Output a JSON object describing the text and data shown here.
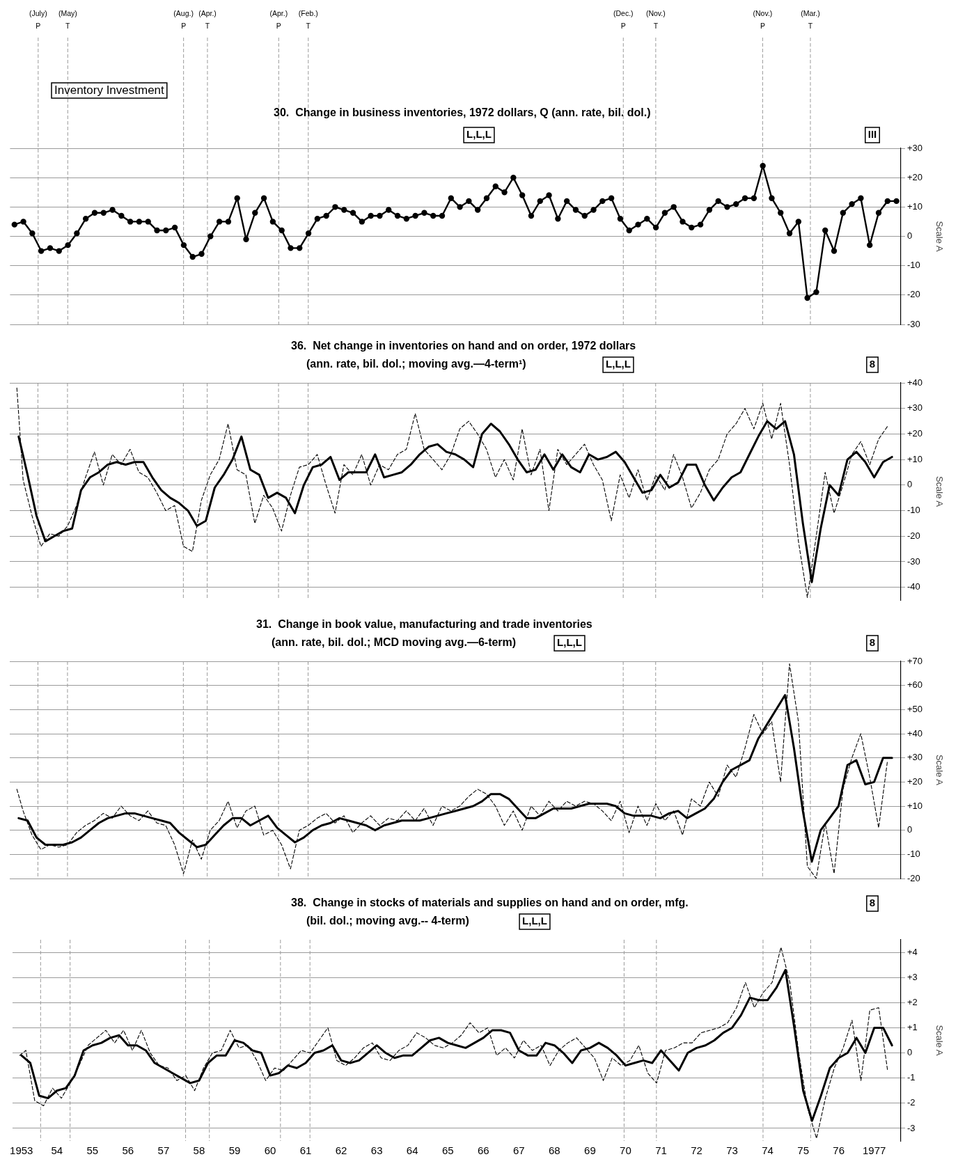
{
  "chart_data": [
    {
      "type": "line",
      "title": "30.  Change in business inventories, 1972 dollars, Q (ann. rate, bil. dol.)",
      "ylabel": "Scale A",
      "x": [
        1952.875,
        1953.125,
        1953.375,
        1953.625,
        1953.875,
        1954.125,
        1954.375,
        1954.625,
        1954.875,
        1955.125,
        1955.375,
        1955.625,
        1955.875,
        1956.125,
        1956.375,
        1956.625,
        1956.875,
        1957.125,
        1957.375,
        1957.625,
        1957.875,
        1958.125,
        1958.375,
        1958.625,
        1958.875,
        1959.125,
        1959.375,
        1959.625,
        1959.875,
        1960.125,
        1960.375,
        1960.625,
        1960.875,
        1961.125,
        1961.375,
        1961.625,
        1961.875,
        1962.125,
        1962.375,
        1962.625,
        1962.875,
        1963.125,
        1963.375,
        1963.625,
        1963.875,
        1964.125,
        1964.375,
        1964.625,
        1964.875,
        1965.125,
        1965.375,
        1965.625,
        1965.875,
        1966.125,
        1966.375,
        1966.625,
        1966.875,
        1967.125,
        1967.375,
        1967.625,
        1967.875,
        1968.125,
        1968.375,
        1968.625,
        1968.875,
        1969.125,
        1969.375,
        1969.625,
        1969.875,
        1970.125,
        1970.375,
        1970.625,
        1970.875,
        1971.125,
        1971.375,
        1971.625,
        1971.875,
        1972.125,
        1972.375,
        1972.625,
        1972.875,
        1973.125,
        1973.375,
        1973.625,
        1973.875,
        1974.125,
        1974.375,
        1974.625,
        1974.875,
        1975.125,
        1975.375,
        1975.625,
        1975.875,
        1976.125,
        1976.375,
        1976.625,
        1976.875,
        1977.125,
        1977.375,
        1977.625
      ],
      "series": [
        {
          "color": "#000000",
          "marker": "circle",
          "line_style": "solid",
          "values": [
            4,
            5,
            1,
            -5,
            -4,
            -5,
            -3,
            1,
            6,
            8,
            8,
            9,
            7,
            5,
            5,
            5,
            2,
            2,
            3,
            -3,
            -7,
            -6,
            0,
            5,
            5,
            13,
            -1,
            8,
            13,
            5,
            2,
            -4,
            -4,
            1,
            6,
            7,
            10,
            9,
            8,
            5,
            7,
            7,
            9,
            7,
            6,
            7,
            8,
            7,
            7,
            13,
            10,
            12,
            9,
            13,
            17,
            15,
            20,
            14,
            7,
            12,
            14,
            6,
            12,
            9,
            7,
            9,
            12,
            13,
            6,
            2,
            4,
            6,
            3,
            8,
            10,
            5,
            3,
            4,
            9,
            12,
            10,
            11,
            13,
            13,
            24,
            13,
            8,
            1,
            5,
            -21,
            -19,
            2,
            -5,
            8,
            11,
            13,
            -3,
            8,
            12,
            12
          ]
        }
      ],
      "xlim": [
        1952.75,
        1977.75
      ],
      "ylim": [
        -30,
        30
      ],
      "yticks": [
        {
          "value": 30,
          "label": "+30"
        },
        {
          "value": 20,
          "label": "+20"
        },
        {
          "value": 10,
          "label": "+10"
        },
        0,
        -10,
        -20,
        -30
      ],
      "grid": "y",
      "tick_labels": "y",
      "annotations": [
        "Inventory Investment",
        "L,L,L",
        "III"
      ],
      "ref_lines": [
        {
          "axis": "x",
          "value": 1953.54,
          "label": "(July)\nP",
          "color": "#9a9a9a",
          "line_style": "dashed"
        },
        {
          "axis": "x",
          "value": 1954.37,
          "label": "(May)\nT",
          "color": "#9a9a9a",
          "line_style": "dashed"
        },
        {
          "axis": "x",
          "value": 1957.62,
          "label": "(Aug.)\nP",
          "color": "#9a9a9a",
          "line_style": "dashed"
        },
        {
          "axis": "x",
          "value": 1958.29,
          "label": "(Apr.)\nT",
          "color": "#9a9a9a",
          "line_style": "dashed"
        },
        {
          "axis": "x",
          "value": 1960.29,
          "label": "(Apr.)\nP",
          "color": "#9a9a9a",
          "line_style": "dashed"
        },
        {
          "axis": "x",
          "value": 1961.12,
          "label": "(Feb.)\nT",
          "color": "#9a9a9a",
          "line_style": "dashed"
        },
        {
          "axis": "x",
          "value": 1969.96,
          "label": "(Dec.)\nP",
          "color": "#9a9a9a",
          "line_style": "dashed"
        },
        {
          "axis": "x",
          "value": 1970.87,
          "label": "(Nov.)\nT",
          "color": "#9a9a9a",
          "line_style": "dashed"
        },
        {
          "axis": "x",
          "value": 1973.87,
          "label": "(Nov.)\nP",
          "color": "#9a9a9a",
          "line_style": "dashed"
        },
        {
          "axis": "x",
          "value": 1975.21,
          "label": "(Mar.)\nT",
          "color": "#9a9a9a",
          "line_style": "dashed"
        }
      ]
    },
    {
      "type": "line",
      "title": "36.  Net change in inventories on hand and on order, 1972 dollars",
      "subtitle": "(ann. rate, bil. dol.; moving avg.—4-term¹)",
      "ylabel": "Scale A",
      "x": [
        1953,
        1953.25,
        1953.5,
        1953.75,
        1954,
        1954.25,
        1954.5,
        1954.75,
        1955,
        1955.25,
        1955.5,
        1955.75,
        1956,
        1956.25,
        1956.5,
        1956.75,
        1957,
        1957.25,
        1957.5,
        1957.75,
        1958,
        1958.25,
        1958.5,
        1958.75,
        1959,
        1959.25,
        1959.5,
        1959.75,
        1960,
        1960.25,
        1960.5,
        1960.75,
        1961,
        1961.25,
        1961.5,
        1961.75,
        1962,
        1962.25,
        1962.5,
        1962.75,
        1963,
        1963.25,
        1963.5,
        1963.75,
        1964,
        1964.25,
        1964.5,
        1964.75,
        1965,
        1965.25,
        1965.5,
        1965.75,
        1966,
        1966.25,
        1966.5,
        1966.75,
        1967,
        1967.25,
        1967.5,
        1967.75,
        1968,
        1968.25,
        1968.5,
        1968.75,
        1969,
        1969.25,
        1969.5,
        1969.75,
        1970,
        1970.25,
        1970.5,
        1970.75,
        1971,
        1971.25,
        1971.5,
        1971.75,
        1972,
        1972.25,
        1972.5,
        1972.75,
        1973,
        1973.25,
        1973.5,
        1973.75,
        1974,
        1974.25,
        1974.5,
        1974.75,
        1975,
        1975.25,
        1975.5,
        1975.75,
        1976,
        1976.25,
        1976.5,
        1976.75,
        1977,
        1977.25,
        1977.5
      ],
      "series": [
        {
          "color": "#000000",
          "line_style": "dashed",
          "marker": "none",
          "x": [
            1952.95,
            1953.125,
            1953.375,
            1953.625,
            1953.875,
            1954.125,
            1954.375,
            1954.625,
            1954.875,
            1955.125,
            1955.375,
            1955.625,
            1955.875,
            1956.125,
            1956.375,
            1956.625,
            1956.875,
            1957.125,
            1957.375,
            1957.625,
            1957.875,
            1958.125,
            1958.375,
            1958.625,
            1958.875,
            1959.125,
            1959.375,
            1959.625,
            1959.875,
            1960.125,
            1960.375,
            1960.625,
            1960.875,
            1961.125,
            1961.375,
            1961.625,
            1961.875,
            1962.125,
            1962.375,
            1962.625,
            1962.875,
            1963.125,
            1963.375,
            1963.625,
            1963.875,
            1964.125,
            1964.375,
            1964.625,
            1964.875,
            1965.125,
            1965.375,
            1965.625,
            1965.875,
            1966.125,
            1966.375,
            1966.625,
            1966.875,
            1967.125,
            1967.375,
            1967.625,
            1967.875,
            1968.125,
            1968.375,
            1968.625,
            1968.875,
            1969.125,
            1969.375,
            1969.625,
            1969.875,
            1970.125,
            1970.375,
            1970.625,
            1970.875,
            1971.125,
            1971.375,
            1971.625,
            1971.875,
            1972.125,
            1972.375,
            1972.625,
            1972.875,
            1973.125,
            1973.375,
            1973.625,
            1973.875,
            1974.125,
            1974.375,
            1974.625,
            1974.875,
            1975.125,
            1975.375,
            1975.625,
            1975.875,
            1976.125,
            1976.375,
            1976.625,
            1976.875,
            1977.125,
            1977.375
          ],
          "values": [
            38,
            2,
            -12,
            -24,
            -19,
            -20,
            -16,
            -8,
            3,
            13,
            0,
            12,
            8,
            14,
            5,
            3,
            -3,
            -10,
            -8,
            -24,
            -26,
            -6,
            4,
            10,
            24,
            6,
            4,
            -15,
            -4,
            -9,
            -18,
            -4,
            7,
            8,
            12,
            0,
            -11,
            8,
            4,
            12,
            0,
            8,
            6,
            12,
            14,
            28,
            14,
            10,
            6,
            12,
            22,
            25,
            20,
            14,
            3,
            10,
            2,
            22,
            4,
            14,
            -10,
            14,
            8,
            12,
            16,
            8,
            2,
            -14,
            4,
            -5,
            6,
            -6,
            4,
            -2,
            12,
            3,
            -9,
            -3,
            6,
            10,
            20,
            24,
            30,
            22,
            32,
            18,
            32,
            8,
            -22,
            -44,
            -20,
            5,
            -11,
            0,
            12,
            17,
            8,
            18,
            23
          ]
        },
        {
          "color": "#000000",
          "line_style": "solid",
          "marker": "none",
          "values": [
            19,
            4,
            -12,
            -22,
            -20,
            -18,
            -17,
            -2,
            3,
            5,
            8,
            9,
            8,
            9,
            9,
            3,
            -2,
            -5,
            -7,
            -10,
            -16,
            -14,
            -1,
            4,
            10,
            19,
            6,
            4,
            -5,
            -3,
            -5,
            -11,
            0,
            7,
            8,
            11,
            2,
            5,
            5,
            5,
            12,
            3,
            4,
            5,
            8,
            12,
            15,
            16,
            13,
            12,
            10,
            7,
            20,
            24,
            21,
            16,
            10,
            5,
            6,
            12,
            6,
            12,
            7,
            5,
            12,
            10,
            11,
            13,
            9,
            3,
            -3,
            -2,
            4,
            -1,
            1,
            8,
            8,
            0,
            -6,
            -1,
            3,
            5,
            12,
            19,
            25,
            22,
            25,
            12,
            -15,
            -38,
            -17,
            0,
            -4,
            10,
            13,
            9,
            3,
            9,
            11
          ]
        }
      ],
      "xlim": [
        1952.75,
        1977.75
      ],
      "ylim": [
        -45,
        40
      ],
      "yticks": [
        {
          "value": 40,
          "label": "+40"
        },
        {
          "value": 30,
          "label": "+30"
        },
        {
          "value": 20,
          "label": "+20"
        },
        {
          "value": 10,
          "label": "+10"
        },
        0,
        -10,
        -20,
        -30,
        -40
      ],
      "grid": "y",
      "tick_labels": "y",
      "annotations": [
        "L,L,L",
        "8"
      ],
      "ref_lines": [
        {
          "axis": "x",
          "value": 1953.54,
          "color": "#9a9a9a",
          "line_style": "dashed"
        },
        {
          "axis": "x",
          "value": 1954.37,
          "color": "#9a9a9a",
          "line_style": "dashed"
        },
        {
          "axis": "x",
          "value": 1957.62,
          "color": "#9a9a9a",
          "line_style": "dashed"
        },
        {
          "axis": "x",
          "value": 1958.29,
          "color": "#9a9a9a",
          "line_style": "dashed"
        },
        {
          "axis": "x",
          "value": 1960.29,
          "color": "#9a9a9a",
          "line_style": "dashed"
        },
        {
          "axis": "x",
          "value": 1961.12,
          "color": "#9a9a9a",
          "line_style": "dashed"
        },
        {
          "axis": "x",
          "value": 1969.96,
          "color": "#9a9a9a",
          "line_style": "dashed"
        },
        {
          "axis": "x",
          "value": 1970.87,
          "color": "#9a9a9a",
          "line_style": "dashed"
        },
        {
          "axis": "x",
          "value": 1973.87,
          "color": "#9a9a9a",
          "line_style": "dashed"
        },
        {
          "axis": "x",
          "value": 1975.21,
          "color": "#9a9a9a",
          "line_style": "dashed"
        }
      ]
    },
    {
      "type": "line",
      "title": "31.  Change in book value, manufacturing and trade inventories",
      "subtitle": "(ann. rate, bil. dol.; MCD moving avg.—6-term)",
      "ylabel": "Scale A",
      "x": [
        1953,
        1953.25,
        1953.5,
        1953.75,
        1954,
        1954.25,
        1954.5,
        1954.75,
        1955,
        1955.25,
        1955.5,
        1955.75,
        1956,
        1956.25,
        1956.5,
        1956.75,
        1957,
        1957.25,
        1957.5,
        1957.75,
        1958,
        1958.25,
        1958.5,
        1958.75,
        1959,
        1959.25,
        1959.5,
        1959.75,
        1960,
        1960.25,
        1960.5,
        1960.75,
        1961,
        1961.25,
        1961.5,
        1961.75,
        1962,
        1962.25,
        1962.5,
        1962.75,
        1963,
        1963.25,
        1963.5,
        1963.75,
        1964,
        1964.25,
        1964.5,
        1964.75,
        1965,
        1965.25,
        1965.5,
        1965.75,
        1966,
        1966.25,
        1966.5,
        1966.75,
        1967,
        1967.25,
        1967.5,
        1967.75,
        1968,
        1968.25,
        1968.5,
        1968.75,
        1969,
        1969.25,
        1969.5,
        1969.75,
        1970,
        1970.25,
        1970.5,
        1970.75,
        1971,
        1971.25,
        1971.5,
        1971.75,
        1972,
        1972.25,
        1972.5,
        1972.75,
        1973,
        1973.25,
        1973.5,
        1973.75,
        1974,
        1974.25,
        1974.5,
        1974.75,
        1975,
        1975.25,
        1975.5,
        1975.75,
        1976,
        1976.25,
        1976.5,
        1976.75,
        1977,
        1977.25,
        1977.5
      ],
      "series": [
        {
          "color": "#000000",
          "line_style": "dashed",
          "marker": "none",
          "x": [
            1952.95,
            1953.125,
            1953.375,
            1953.625,
            1953.875,
            1954.125,
            1954.375,
            1954.625,
            1954.875,
            1955.125,
            1955.375,
            1955.625,
            1955.875,
            1956.125,
            1956.375,
            1956.625,
            1956.875,
            1957.125,
            1957.375,
            1957.625,
            1957.875,
            1958.125,
            1958.375,
            1958.625,
            1958.875,
            1959.125,
            1959.375,
            1959.625,
            1959.875,
            1960.125,
            1960.375,
            1960.625,
            1960.875,
            1961.125,
            1961.375,
            1961.625,
            1961.875,
            1962.125,
            1962.375,
            1962.625,
            1962.875,
            1963.125,
            1963.375,
            1963.625,
            1963.875,
            1964.125,
            1964.375,
            1964.625,
            1964.875,
            1965.125,
            1965.375,
            1965.625,
            1965.875,
            1966.125,
            1966.375,
            1966.625,
            1966.875,
            1967.125,
            1967.375,
            1967.625,
            1967.875,
            1968.125,
            1968.375,
            1968.625,
            1968.875,
            1969.125,
            1969.375,
            1969.625,
            1969.875,
            1970.125,
            1970.375,
            1970.625,
            1970.875,
            1971.125,
            1971.375,
            1971.625,
            1971.875,
            1972.125,
            1972.375,
            1972.625,
            1972.875,
            1973.125,
            1973.375,
            1973.625,
            1973.875,
            1974.125,
            1974.375,
            1974.625,
            1974.875,
            1975.125,
            1975.375,
            1975.625,
            1975.875,
            1976.125,
            1976.375,
            1976.625,
            1976.875,
            1977.125,
            1977.375
          ],
          "values": [
            17,
            8,
            -2,
            -8,
            -6,
            -7,
            -6,
            -1,
            2,
            4,
            7,
            5,
            10,
            6,
            4,
            8,
            3,
            2,
            -6,
            -18,
            -4,
            -12,
            0,
            4,
            12,
            1,
            8,
            10,
            -2,
            0,
            -6,
            -16,
            0,
            2,
            5,
            7,
            3,
            6,
            -1,
            3,
            6,
            2,
            5,
            4,
            8,
            4,
            9,
            2,
            10,
            8,
            10,
            14,
            17,
            15,
            10,
            2,
            8,
            0,
            10,
            6,
            12,
            8,
            12,
            10,
            12,
            11,
            8,
            4,
            12,
            -1,
            10,
            2,
            11,
            4,
            8,
            -2,
            13,
            10,
            20,
            14,
            27,
            22,
            34,
            48,
            40,
            45,
            20,
            69,
            45,
            -15,
            -20,
            3,
            -18,
            17,
            30,
            40,
            22,
            1,
            29
          ]
        },
        {
          "color": "#000000",
          "line_style": "solid",
          "marker": "none",
          "values": [
            5,
            4,
            -3,
            -6,
            -6,
            -6,
            -5,
            -3,
            0,
            3,
            5,
            6,
            7,
            7,
            6,
            5,
            4,
            3,
            -1,
            -4,
            -7,
            -6,
            -2,
            2,
            5,
            5,
            2,
            4,
            6,
            1,
            -2,
            -5,
            -3,
            0,
            2,
            3,
            5,
            4,
            3,
            2,
            0,
            2,
            3,
            4,
            4,
            4,
            5,
            6,
            7,
            8,
            9,
            10,
            12,
            15,
            15,
            13,
            9,
            5,
            5,
            7,
            9,
            9,
            9,
            10,
            11,
            11,
            11,
            10,
            7,
            6,
            6,
            6,
            5,
            7,
            8,
            5,
            7,
            9,
            13,
            20,
            25,
            27,
            29,
            38,
            44,
            50,
            56,
            34,
            8,
            -13,
            0,
            5,
            10,
            27,
            29,
            19,
            20,
            30,
            30
          ]
        }
      ],
      "xlim": [
        1952.75,
        1977.75
      ],
      "ylim": [
        -20,
        70
      ],
      "yticks": [
        {
          "value": 70,
          "label": "+70"
        },
        {
          "value": 60,
          "label": "+60"
        },
        {
          "value": 50,
          "label": "+50"
        },
        {
          "value": 40,
          "label": "+40"
        },
        {
          "value": 30,
          "label": "+30"
        },
        {
          "value": 20,
          "label": "+20"
        },
        {
          "value": 10,
          "label": "+10"
        },
        0,
        -10,
        -20
      ],
      "grid": "y",
      "tick_labels": "y",
      "annotations": [
        "L,L,L",
        "8"
      ],
      "ref_lines": [
        {
          "axis": "x",
          "value": 1953.54,
          "color": "#9a9a9a",
          "line_style": "dashed"
        },
        {
          "axis": "x",
          "value": 1954.37,
          "color": "#9a9a9a",
          "line_style": "dashed"
        },
        {
          "axis": "x",
          "value": 1957.62,
          "color": "#9a9a9a",
          "line_style": "dashed"
        },
        {
          "axis": "x",
          "value": 1958.29,
          "color": "#9a9a9a",
          "line_style": "dashed"
        },
        {
          "axis": "x",
          "value": 1960.29,
          "color": "#9a9a9a",
          "line_style": "dashed"
        },
        {
          "axis": "x",
          "value": 1961.12,
          "color": "#9a9a9a",
          "line_style": "dashed"
        },
        {
          "axis": "x",
          "value": 1969.96,
          "color": "#9a9a9a",
          "line_style": "dashed"
        },
        {
          "axis": "x",
          "value": 1970.87,
          "color": "#9a9a9a",
          "line_style": "dashed"
        },
        {
          "axis": "x",
          "value": 1973.87,
          "color": "#9a9a9a",
          "line_style": "dashed"
        },
        {
          "axis": "x",
          "value": 1975.21,
          "color": "#9a9a9a",
          "line_style": "dashed"
        }
      ]
    },
    {
      "type": "line",
      "title": "38.  Change in stocks of materials and supplies on hand and on order, mfg.",
      "subtitle": "(bil. dol.; moving avg.-- 4-term)",
      "ylabel": "Scale A",
      "x": [
        1953,
        1953.25,
        1953.5,
        1953.75,
        1954,
        1954.25,
        1954.5,
        1954.75,
        1955,
        1955.25,
        1955.5,
        1955.75,
        1956,
        1956.25,
        1956.5,
        1956.75,
        1957,
        1957.25,
        1957.5,
        1957.75,
        1958,
        1958.25,
        1958.5,
        1958.75,
        1959,
        1959.25,
        1959.5,
        1959.75,
        1960,
        1960.25,
        1960.5,
        1960.75,
        1961,
        1961.25,
        1961.5,
        1961.75,
        1962,
        1962.25,
        1962.5,
        1962.75,
        1963,
        1963.25,
        1963.5,
        1963.75,
        1964,
        1964.25,
        1964.5,
        1964.75,
        1965,
        1965.25,
        1965.5,
        1965.75,
        1966,
        1966.25,
        1966.5,
        1966.75,
        1967,
        1967.25,
        1967.5,
        1967.75,
        1968,
        1968.25,
        1968.5,
        1968.75,
        1969,
        1969.25,
        1969.5,
        1969.75,
        1970,
        1970.25,
        1970.5,
        1970.75,
        1971,
        1971.25,
        1971.5,
        1971.75,
        1972,
        1972.25,
        1972.5,
        1972.75,
        1973,
        1973.25,
        1973.5,
        1973.75,
        1974,
        1974.25,
        1974.5,
        1974.75,
        1975,
        1975.25,
        1975.5,
        1975.75,
        1976,
        1976.25,
        1976.5,
        1976.75,
        1977,
        1977.25,
        1977.5
      ],
      "series": [
        {
          "color": "#000000",
          "line_style": "dashed",
          "marker": "none",
          "x": [
            1952.95,
            1953.125,
            1953.375,
            1953.625,
            1953.875,
            1954.125,
            1954.375,
            1954.625,
            1954.875,
            1955.125,
            1955.375,
            1955.625,
            1955.875,
            1956.125,
            1956.375,
            1956.625,
            1956.875,
            1957.125,
            1957.375,
            1957.625,
            1957.875,
            1958.125,
            1958.375,
            1958.625,
            1958.875,
            1959.125,
            1959.375,
            1959.625,
            1959.875,
            1960.125,
            1960.375,
            1960.625,
            1960.875,
            1961.125,
            1961.375,
            1961.625,
            1961.875,
            1962.125,
            1962.375,
            1962.625,
            1962.875,
            1963.125,
            1963.375,
            1963.625,
            1963.875,
            1964.125,
            1964.375,
            1964.625,
            1964.875,
            1965.125,
            1965.375,
            1965.625,
            1965.875,
            1966.125,
            1966.375,
            1966.625,
            1966.875,
            1967.125,
            1967.375,
            1967.625,
            1967.875,
            1968.125,
            1968.375,
            1968.625,
            1968.875,
            1969.125,
            1969.375,
            1969.625,
            1969.875,
            1970.125,
            1970.375,
            1970.625,
            1970.875,
            1971.125,
            1971.375,
            1971.625,
            1971.875,
            1972.125,
            1972.375,
            1972.625,
            1972.875,
            1973.125,
            1973.375,
            1973.625,
            1973.875,
            1974.125,
            1974.375,
            1974.625,
            1974.875,
            1975.125,
            1975.375,
            1975.625,
            1975.875,
            1976.125,
            1976.375,
            1976.625,
            1976.875,
            1977.125,
            1977.375
          ],
          "values": [
            -0.1,
            0.1,
            -1.9,
            -2.1,
            -1.4,
            -1.8,
            -1.2,
            -0.5,
            0.3,
            0.6,
            0.9,
            0.4,
            0.9,
            0.1,
            0.9,
            0,
            -0.5,
            -0.6,
            -1.1,
            -0.9,
            -1.5,
            -0.6,
            0,
            0.1,
            0.9,
            0.2,
            0.3,
            -0.3,
            -1.1,
            -0.6,
            -0.7,
            -0.3,
            0.1,
            0,
            0.5,
            1,
            -0.3,
            -0.5,
            -0.2,
            0.2,
            0.4,
            -0.2,
            -0.3,
            0.1,
            0.3,
            0.8,
            0.6,
            0.3,
            0.2,
            0.4,
            0.7,
            1.2,
            0.8,
            1,
            -0.1,
            0.2,
            -0.2,
            0.5,
            0.1,
            0.3,
            -0.5,
            0.1,
            0.4,
            0.6,
            0.2,
            -0.2,
            -1.1,
            -0.2,
            -0.5,
            -0.3,
            0.3,
            -0.8,
            -1.2,
            0.1,
            0.2,
            0.4,
            0.4,
            0.8,
            0.9,
            1,
            1.2,
            1.8,
            2.8,
            1.8,
            2.4,
            2.8,
            4.2,
            2.8,
            0,
            -2.2,
            -3.4,
            -1.8,
            -0.6,
            0.2,
            1.3,
            -1.1,
            1.7,
            1.8,
            -0.7
          ]
        },
        {
          "color": "#000000",
          "line_style": "solid",
          "marker": "none",
          "values": [
            -0.1,
            -0.4,
            -1.7,
            -1.8,
            -1.5,
            -1.4,
            -0.9,
            0.1,
            0.3,
            0.4,
            0.6,
            0.7,
            0.3,
            0.3,
            0.1,
            -0.4,
            -0.6,
            -0.8,
            -1,
            -1.2,
            -1.1,
            -0.4,
            -0.1,
            -0.1,
            0.5,
            0.4,
            0.1,
            0,
            -0.9,
            -0.8,
            -0.5,
            -0.6,
            -0.4,
            0,
            0.1,
            0.3,
            -0.3,
            -0.4,
            -0.3,
            0,
            0.3,
            0,
            -0.2,
            -0.1,
            -0.1,
            0.2,
            0.5,
            0.6,
            0.4,
            0.3,
            0.2,
            0.4,
            0.6,
            0.9,
            0.9,
            0.8,
            0.1,
            -0.1,
            -0.1,
            0.4,
            0.3,
            0,
            -0.4,
            0.1,
            0.2,
            0.4,
            0.2,
            -0.1,
            -0.5,
            -0.4,
            -0.3,
            -0.4,
            0.1,
            -0.3,
            -0.7,
            0,
            0.2,
            0.3,
            0.5,
            0.8,
            1,
            1.5,
            2.2,
            2.1,
            2.1,
            2.6,
            3.3,
            1,
            -1.5,
            -2.7,
            -1.7,
            -0.6,
            -0.2,
            0,
            0.6,
            0,
            1,
            1,
            0.3
          ]
        }
      ],
      "xlim": [
        1952.75,
        1977.75
      ],
      "ylim": [
        -3.5,
        4.5
      ],
      "xticks": [
        1953,
        {
          "value": 1954,
          "label": "54"
        },
        {
          "value": 1955,
          "label": "55"
        },
        {
          "value": 1956,
          "label": "56"
        },
        {
          "value": 1957,
          "label": "57"
        },
        {
          "value": 1958,
          "label": "58"
        },
        {
          "value": 1959,
          "label": "59"
        },
        {
          "value": 1960,
          "label": "60"
        },
        {
          "value": 1961,
          "label": "61"
        },
        {
          "value": 1962,
          "label": "62"
        },
        {
          "value": 1963,
          "label": "63"
        },
        {
          "value": 1964,
          "label": "64"
        },
        {
          "value": 1965,
          "label": "65"
        },
        {
          "value": 1966,
          "label": "66"
        },
        {
          "value": 1967,
          "label": "67"
        },
        {
          "value": 1968,
          "label": "68"
        },
        {
          "value": 1969,
          "label": "69"
        },
        {
          "value": 1970,
          "label": "70"
        },
        {
          "value": 1971,
          "label": "71"
        },
        {
          "value": 1972,
          "label": "72"
        },
        {
          "value": 1973,
          "label": "73"
        },
        {
          "value": 1974,
          "label": "74"
        },
        {
          "value": 1975,
          "label": "75"
        },
        {
          "value": 1976,
          "label": "76"
        },
        1977
      ],
      "yticks": [
        {
          "value": 4,
          "label": "+4"
        },
        {
          "value": 3,
          "label": "+3"
        },
        {
          "value": 2,
          "label": "+2"
        },
        {
          "value": 1,
          "label": "+1"
        },
        0,
        -1,
        -2,
        -3
      ],
      "grid": "y",
      "annotations": [
        "L,L,L",
        "8"
      ],
      "ref_lines": [
        {
          "axis": "x",
          "value": 1953.54,
          "color": "#9a9a9a",
          "line_style": "dashed"
        },
        {
          "axis": "x",
          "value": 1954.37,
          "color": "#9a9a9a",
          "line_style": "dashed"
        },
        {
          "axis": "x",
          "value": 1957.62,
          "color": "#9a9a9a",
          "line_style": "dashed"
        },
        {
          "axis": "x",
          "value": 1958.29,
          "color": "#9a9a9a",
          "line_style": "dashed"
        },
        {
          "axis": "x",
          "value": 1960.29,
          "color": "#9a9a9a",
          "line_style": "dashed"
        },
        {
          "axis": "x",
          "value": 1961.12,
          "color": "#9a9a9a",
          "line_style": "dashed"
        },
        {
          "axis": "x",
          "value": 1969.96,
          "color": "#9a9a9a",
          "line_style": "dashed"
        },
        {
          "axis": "x",
          "value": 1970.87,
          "color": "#9a9a9a",
          "line_style": "dashed"
        },
        {
          "axis": "x",
          "value": 1973.87,
          "color": "#9a9a9a",
          "line_style": "dashed"
        },
        {
          "axis": "x",
          "value": 1975.21,
          "color": "#9a9a9a",
          "line_style": "dashed"
        }
      ]
    }
  ]
}
